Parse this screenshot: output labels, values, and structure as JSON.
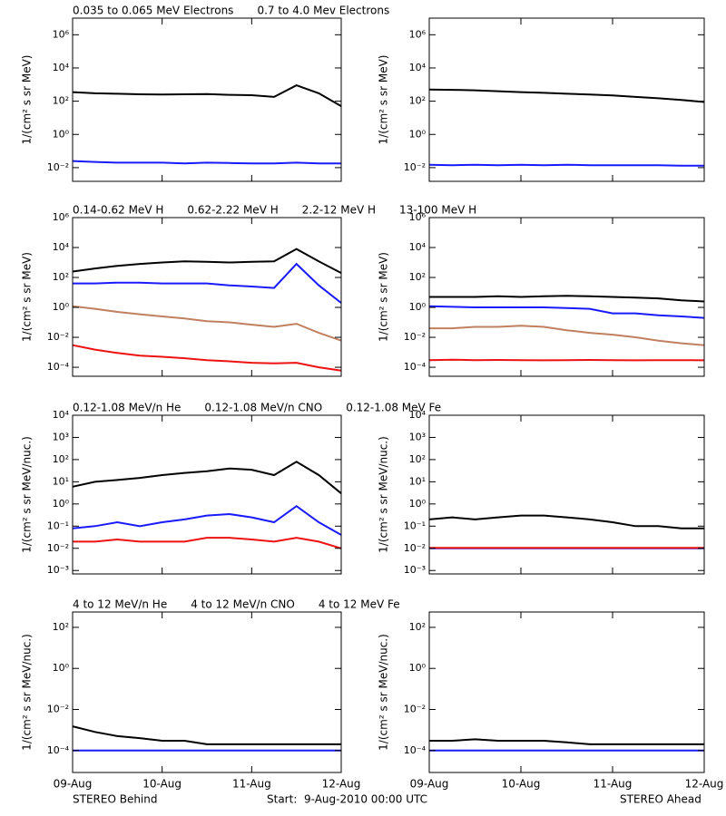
{
  "chart_data": [
    {
      "type": "line",
      "log_y": true,
      "ylabel": "1/(cm² s sr MeV)",
      "xlim": [
        0,
        3
      ],
      "ylim": [
        0.0015,
        10000000
      ],
      "yticks": [
        {
          "value": 0.01,
          "label": "10⁻²"
        },
        {
          "value": 1,
          "label": "10⁰"
        },
        {
          "value": 100,
          "label": "10²"
        },
        {
          "value": 10000,
          "label": "10⁴"
        },
        {
          "value": 1000000,
          "label": "10⁶"
        }
      ],
      "x": [
        0,
        0.25,
        0.5,
        0.75,
        1,
        1.25,
        1.5,
        1.75,
        2,
        2.25,
        2.5,
        2.75,
        3
      ],
      "series": [
        {
          "name": "0.035 to 0.065 MeV Electrons",
          "color": "#000000",
          "values": [
            350,
            300,
            280,
            260,
            250,
            260,
            270,
            240,
            230,
            180,
            900,
            300,
            50
          ]
        },
        {
          "name": "0.7 to 4.0 Mev Electrons",
          "color": "#1a1aff",
          "values": [
            0.025,
            0.022,
            0.02,
            0.02,
            0.02,
            0.018,
            0.02,
            0.019,
            0.018,
            0.018,
            0.02,
            0.018,
            0.018
          ]
        }
      ]
    },
    {
      "type": "line",
      "log_y": true,
      "ylabel": "1/(cm² s sr MeV)",
      "xlim": [
        0,
        3
      ],
      "ylim": [
        0.0015,
        10000000
      ],
      "yticks": [
        {
          "value": 0.01,
          "label": "10⁻²"
        },
        {
          "value": 1,
          "label": "10⁰"
        },
        {
          "value": 100,
          "label": "10²"
        },
        {
          "value": 10000,
          "label": "10⁴"
        },
        {
          "value": 1000000,
          "label": "10⁶"
        }
      ],
      "x": [
        0,
        0.25,
        0.5,
        0.75,
        1,
        1.25,
        1.5,
        1.75,
        2,
        2.25,
        2.5,
        2.75,
        3
      ],
      "series": [
        {
          "color": "#000000",
          "values": [
            500,
            480,
            450,
            400,
            350,
            320,
            280,
            250,
            220,
            180,
            150,
            120,
            90
          ]
        },
        {
          "color": "#1a1aff",
          "values": [
            0.015,
            0.014,
            0.015,
            0.014,
            0.015,
            0.014,
            0.015,
            0.014,
            0.014,
            0.014,
            0.014,
            0.013,
            0.013
          ]
        }
      ]
    },
    {
      "type": "line",
      "log_y": true,
      "ylabel": "1/(cm² s sr MeV)",
      "xlim": [
        0,
        3
      ],
      "ylim": [
        2.5e-05,
        1000000
      ],
      "yticks": [
        {
          "value": 0.0001,
          "label": "10⁻⁴"
        },
        {
          "value": 0.01,
          "label": "10⁻²"
        },
        {
          "value": 1,
          "label": "10⁰"
        },
        {
          "value": 100,
          "label": "10²"
        },
        {
          "value": 10000,
          "label": "10⁴"
        },
        {
          "value": 1000000,
          "label": "10⁶"
        }
      ],
      "x": [
        0,
        0.25,
        0.5,
        0.75,
        1,
        1.25,
        1.5,
        1.75,
        2,
        2.25,
        2.5,
        2.75,
        3
      ],
      "series": [
        {
          "name": "0.14-0.62 MeV H",
          "color": "#000000",
          "values": [
            250,
            400,
            600,
            800,
            1000,
            1200,
            1100,
            1000,
            1100,
            1200,
            8000,
            1200,
            200
          ]
        },
        {
          "name": "0.62-2.22 MeV H",
          "color": "#1a1aff",
          "values": [
            40,
            40,
            45,
            45,
            40,
            40,
            40,
            30,
            25,
            20,
            800,
            30,
            2
          ]
        },
        {
          "name": "2.2-12 MeV H",
          "color": "#c08060",
          "values": [
            1.2,
            0.8,
            0.5,
            0.35,
            0.25,
            0.18,
            0.12,
            0.1,
            0.07,
            0.05,
            0.08,
            0.02,
            0.006
          ]
        },
        {
          "name": "13-100 MeV H",
          "color": "#ee1111",
          "values": [
            0.003,
            0.0015,
            0.0009,
            0.0006,
            0.0005,
            0.0004,
            0.0003,
            0.00025,
            0.0002,
            0.00018,
            0.0002,
            0.0001,
            6e-05
          ]
        }
      ]
    },
    {
      "type": "line",
      "log_y": true,
      "ylabel": "1/(cm² s sr MeV)",
      "xlim": [
        0,
        3
      ],
      "ylim": [
        2.5e-05,
        1000000
      ],
      "yticks": [
        {
          "value": 0.0001,
          "label": "10⁻⁴"
        },
        {
          "value": 0.01,
          "label": "10⁻²"
        },
        {
          "value": 1,
          "label": "10⁰"
        },
        {
          "value": 100,
          "label": "10²"
        },
        {
          "value": 10000,
          "label": "10⁴"
        },
        {
          "value": 1000000,
          "label": "10⁶"
        }
      ],
      "x": [
        0,
        0.25,
        0.5,
        0.75,
        1,
        1.25,
        1.5,
        1.75,
        2,
        2.25,
        2.5,
        2.75,
        3
      ],
      "series": [
        {
          "color": "#000000",
          "values": [
            5,
            5,
            5,
            5.5,
            5,
            5.5,
            6,
            5.5,
            5,
            4.5,
            4,
            3,
            2.5
          ]
        },
        {
          "color": "#1a1aff",
          "values": [
            1.2,
            1.1,
            1,
            1,
            1,
            1,
            0.9,
            0.8,
            0.4,
            0.4,
            0.3,
            0.25,
            0.2
          ]
        },
        {
          "color": "#c08060",
          "values": [
            0.04,
            0.04,
            0.05,
            0.05,
            0.06,
            0.05,
            0.03,
            0.02,
            0.015,
            0.01,
            0.006,
            0.004,
            0.003
          ]
        },
        {
          "color": "#ee1111",
          "values": [
            0.0003,
            0.00032,
            0.0003,
            0.00031,
            0.0003,
            0.00029,
            0.0003,
            0.00031,
            0.0003,
            0.00029,
            0.0003,
            0.0003,
            0.00029
          ]
        }
      ]
    },
    {
      "type": "line",
      "log_y": true,
      "ylabel": "1/(cm² s sr MeV/nuc.)",
      "xlim": [
        0,
        3
      ],
      "ylim": [
        0.0007,
        10000
      ],
      "yticks": [
        {
          "value": 0.001,
          "label": "10⁻³"
        },
        {
          "value": 0.01,
          "label": "10⁻²"
        },
        {
          "value": 0.1,
          "label": "10⁻¹"
        },
        {
          "value": 1,
          "label": "10⁰"
        },
        {
          "value": 10,
          "label": "10¹"
        },
        {
          "value": 100,
          "label": "10²"
        },
        {
          "value": 1000,
          "label": "10³"
        },
        {
          "value": 10000,
          "label": "10⁴"
        }
      ],
      "x": [
        0,
        0.25,
        0.5,
        0.75,
        1,
        1.25,
        1.5,
        1.75,
        2,
        2.25,
        2.5,
        2.75,
        3
      ],
      "series": [
        {
          "name": "0.12-1.08 MeV/n He",
          "color": "#000000",
          "values": [
            6,
            10,
            12,
            15,
            20,
            25,
            30,
            40,
            35,
            20,
            80,
            20,
            3
          ]
        },
        {
          "name": "0.12-1.08 MeV/n CNO",
          "color": "#1a1aff",
          "values": [
            0.08,
            0.1,
            0.15,
            0.1,
            0.15,
            0.2,
            0.3,
            0.35,
            0.25,
            0.15,
            0.8,
            0.15,
            0.04
          ]
        },
        {
          "name": "0.12-1.08 MeV Fe",
          "color": "#ee1111",
          "values": [
            0.02,
            0.02,
            0.025,
            0.02,
            0.02,
            0.02,
            0.03,
            0.03,
            0.025,
            0.02,
            0.03,
            0.02,
            0.01
          ]
        }
      ]
    },
    {
      "type": "line",
      "log_y": true,
      "ylabel": "1/(cm² s sr MeV/nuc.)",
      "xlim": [
        0,
        3
      ],
      "ylim": [
        0.0007,
        10000
      ],
      "yticks": [
        {
          "value": 0.001,
          "label": "10⁻³"
        },
        {
          "value": 0.01,
          "label": "10⁻²"
        },
        {
          "value": 0.1,
          "label": "10⁻¹"
        },
        {
          "value": 1,
          "label": "10⁰"
        },
        {
          "value": 10,
          "label": "10¹"
        },
        {
          "value": 100,
          "label": "10²"
        },
        {
          "value": 1000,
          "label": "10³"
        },
        {
          "value": 10000,
          "label": "10⁴"
        }
      ],
      "x": [
        0,
        0.25,
        0.5,
        0.75,
        1,
        1.25,
        1.5,
        1.75,
        2,
        2.25,
        2.5,
        2.75,
        3
      ],
      "series": [
        {
          "color": "#000000",
          "values": [
            0.2,
            0.25,
            0.2,
            0.25,
            0.3,
            0.3,
            0.25,
            0.2,
            0.15,
            0.1,
            0.1,
            0.08,
            0.08
          ]
        },
        {
          "color": "#1a1aff",
          "values": [
            0.01,
            0.01,
            0.01,
            0.01,
            0.01,
            0.01,
            0.01,
            0.01,
            0.01,
            0.01,
            0.01,
            0.01,
            0.01
          ]
        },
        {
          "color": "#ee1111",
          "values": [
            0.0105,
            0.0105,
            0.0105,
            0.0105,
            0.0105,
            0.0105,
            0.0105,
            0.0105,
            0.0105,
            0.0105,
            0.0105,
            0.0105,
            0.0105
          ]
        }
      ]
    },
    {
      "type": "line",
      "log_y": true,
      "ylabel": "1/(cm² s sr MeV/nuc.)",
      "xlim": [
        0,
        3
      ],
      "ylim": [
        8.5e-06,
        560
      ],
      "xticks": [
        {
          "value": 0,
          "label": "09-Aug"
        },
        {
          "value": 1,
          "label": "10-Aug"
        },
        {
          "value": 2,
          "label": "11-Aug"
        },
        {
          "value": 3,
          "label": "12-Aug"
        }
      ],
      "yticks": [
        {
          "value": 0.0001,
          "label": "10⁻⁴"
        },
        {
          "value": 0.01,
          "label": "10⁻²"
        },
        {
          "value": 1,
          "label": "10⁰"
        },
        {
          "value": 100,
          "label": "10²"
        }
      ],
      "x": [
        0,
        0.25,
        0.5,
        0.75,
        1,
        1.25,
        1.5,
        1.75,
        2,
        2.25,
        2.5,
        2.75,
        3
      ],
      "series": [
        {
          "name": "4 to 12 MeV/n He",
          "color": "#000000",
          "values": [
            0.0015,
            0.0008,
            0.0005,
            0.0004,
            0.0003,
            0.0003,
            0.0002,
            0.0002,
            0.0002,
            0.0002,
            0.0002,
            0.0002,
            0.0002
          ]
        },
        {
          "name": "4 to 12 MeV/n CNO",
          "color": "#1a1aff",
          "values": [
            0.0001,
            0.0001,
            0.0001,
            0.0001,
            0.0001,
            0.0001,
            0.0001,
            0.0001,
            0.0001,
            0.0001,
            0.0001,
            0.0001,
            0.0001
          ]
        },
        {
          "name": "4 to 12 MeV Fe",
          "color": "#ee1111",
          "values": [
            null,
            null,
            null,
            null,
            null,
            null,
            null,
            null,
            null,
            null,
            null,
            null,
            null
          ]
        }
      ]
    },
    {
      "type": "line",
      "log_y": true,
      "ylabel": "1/(cm² s sr MeV/nuc.)",
      "xlim": [
        0,
        3
      ],
      "ylim": [
        8.5e-06,
        560
      ],
      "xticks": [
        {
          "value": 0,
          "label": "09-Aug"
        },
        {
          "value": 1,
          "label": "10-Aug"
        },
        {
          "value": 2,
          "label": "11-Aug"
        },
        {
          "value": 3,
          "label": "12-Aug"
        }
      ],
      "yticks": [
        {
          "value": 0.0001,
          "label": "10⁻⁴"
        },
        {
          "value": 0.01,
          "label": "10⁻²"
        },
        {
          "value": 1,
          "label": "10⁰"
        },
        {
          "value": 100,
          "label": "10²"
        }
      ],
      "x": [
        0,
        0.25,
        0.5,
        0.75,
        1,
        1.25,
        1.5,
        1.75,
        2,
        2.25,
        2.5,
        2.75,
        3
      ],
      "series": [
        {
          "color": "#000000",
          "values": [
            0.0003,
            0.0003,
            0.00035,
            0.0003,
            0.0003,
            0.0003,
            0.00025,
            0.0002,
            0.0002,
            0.0002,
            0.0002,
            0.0002,
            0.0002
          ]
        },
        {
          "color": "#1a1aff",
          "values": [
            0.0001,
            0.0001,
            0.0001,
            0.0001,
            0.0001,
            0.0001,
            0.0001,
            0.0001,
            0.0001,
            0.0001,
            0.0001,
            0.0001,
            0.0001
          ]
        }
      ]
    }
  ],
  "footer": {
    "left": "STEREO Behind",
    "center": "Start:  9-Aug-2010 00:00 UTC",
    "right": "STEREO Ahead"
  }
}
